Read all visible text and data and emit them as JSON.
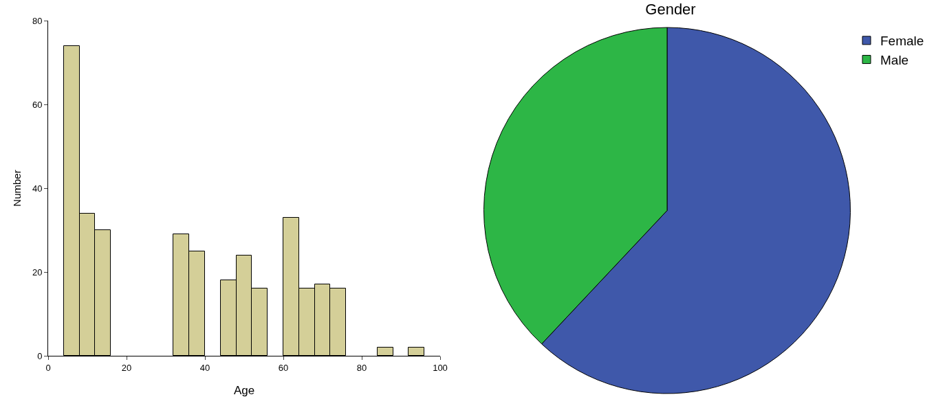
{
  "chart_data": [
    {
      "type": "histogram",
      "xlabel": "Age",
      "ylabel": "Number",
      "color": "#d4cf98",
      "bins": [
        4,
        8,
        12,
        16,
        20,
        24,
        28,
        32,
        36,
        40,
        44,
        48,
        52,
        56,
        60,
        64,
        68,
        72,
        76,
        80,
        84,
        88,
        92,
        96
      ],
      "values": [
        74,
        34,
        30,
        0,
        0,
        0,
        0,
        29,
        25,
        0,
        18,
        24,
        16,
        0,
        33,
        16,
        17,
        16,
        0,
        0,
        2,
        0,
        2
      ],
      "xlim": [
        0,
        100
      ],
      "xticks": [
        0,
        20,
        40,
        60,
        80,
        100
      ],
      "ylim": [
        0,
        80
      ],
      "yticks": [
        0,
        20,
        40,
        60,
        80
      ],
      "grid": false
    },
    {
      "type": "pie",
      "title": "Gender",
      "categories": [
        "Female",
        "Male"
      ],
      "values": [
        62,
        38
      ],
      "colors": [
        "#3f58aa",
        "#2db646"
      ],
      "legend": "top right"
    }
  ]
}
